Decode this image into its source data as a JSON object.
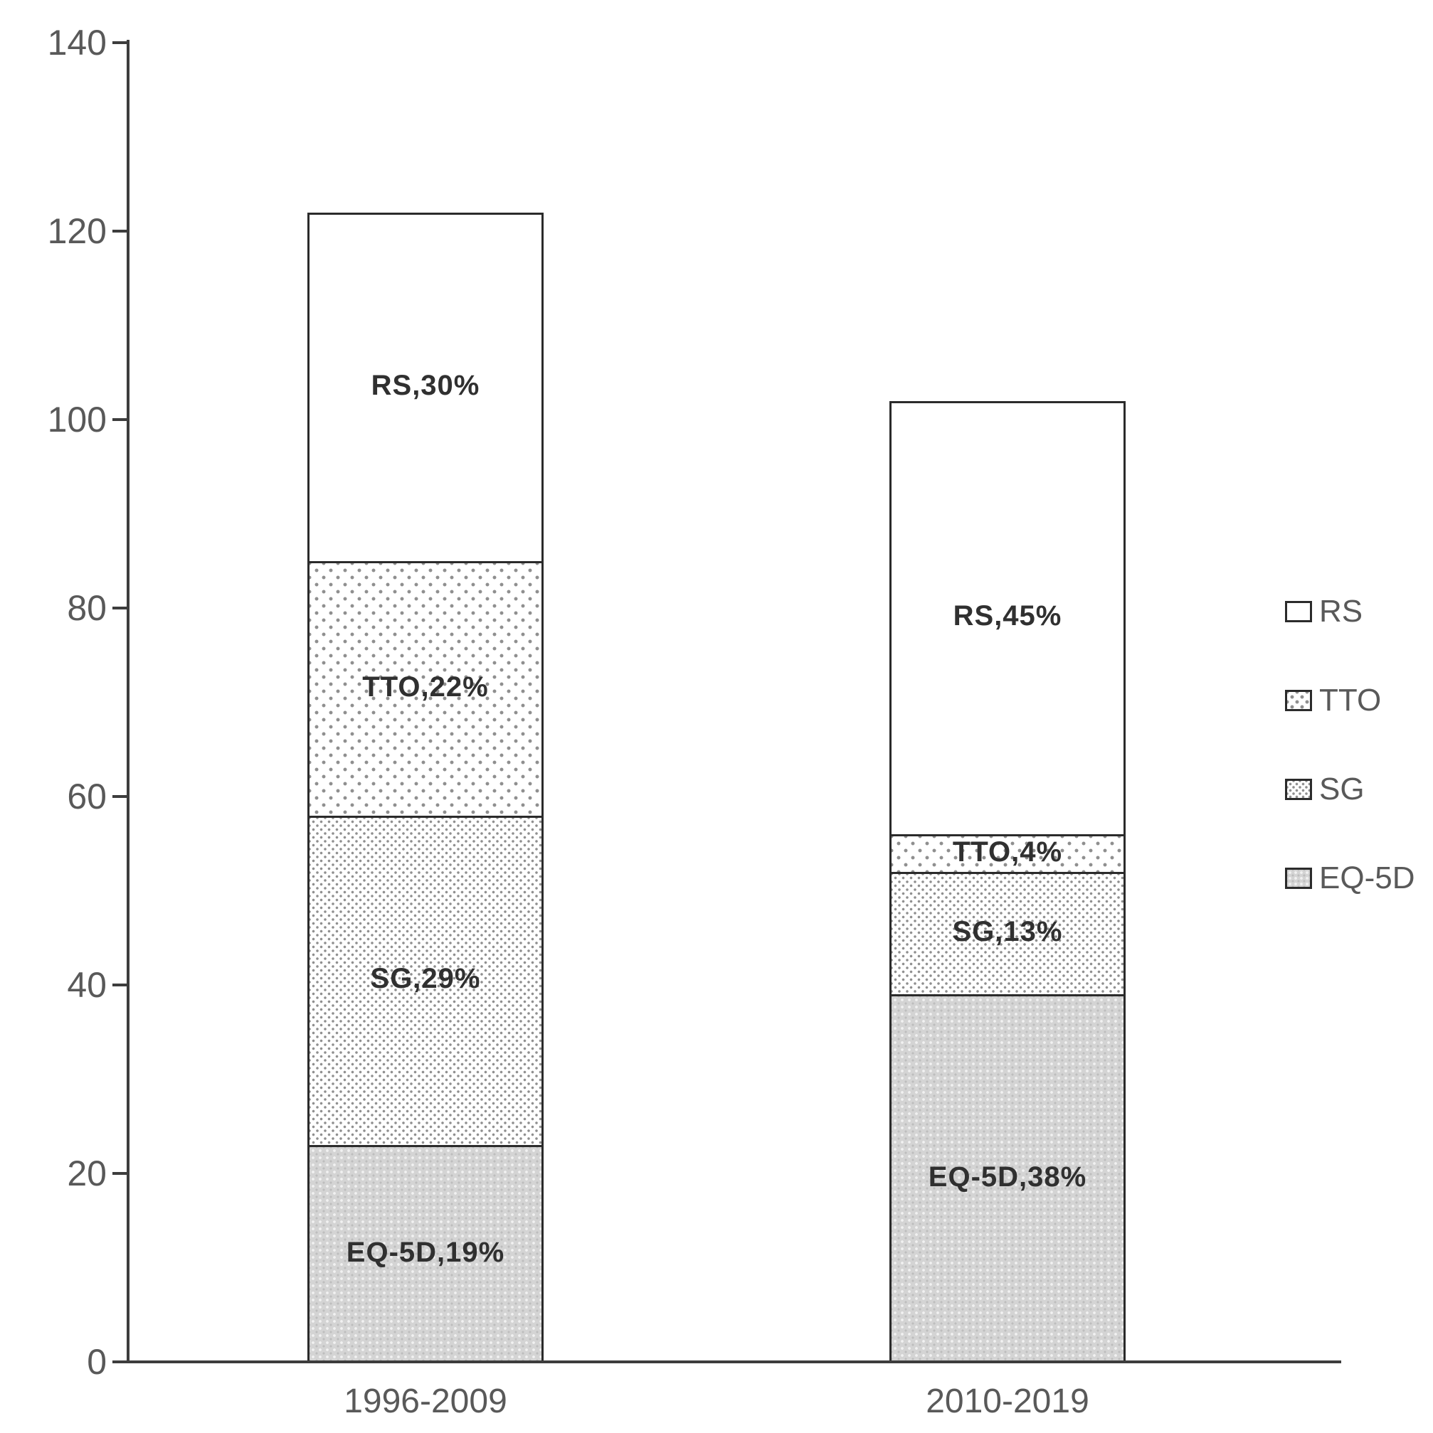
{
  "chart_data": {
    "type": "bar",
    "stacked": true,
    "title": "",
    "categories": [
      "1996-2009",
      "2010-2019"
    ],
    "series": [
      {
        "name": "EQ-5D",
        "pattern": "eq",
        "values": [
          23,
          39
        ],
        "segment_labels": [
          "EQ-5D,19%",
          "EQ-5D,38%"
        ]
      },
      {
        "name": "SG",
        "pattern": "sg",
        "values": [
          35,
          13
        ],
        "segment_labels": [
          "SG,29%",
          "SG,13%"
        ]
      },
      {
        "name": "TTO",
        "pattern": "tto",
        "values": [
          27,
          4
        ],
        "segment_labels": [
          "TTO,22%",
          "TTO,4%"
        ]
      },
      {
        "name": "RS",
        "pattern": "rs",
        "values": [
          37,
          46
        ],
        "segment_labels": [
          "RS,30%",
          "RS,45%"
        ]
      }
    ],
    "totals": [
      122,
      102
    ],
    "percent_by_category": {
      "1996-2009": {
        "EQ-5D": 19,
        "SG": 29,
        "TTO": 22,
        "RS": 30
      },
      "2010-2019": {
        "EQ-5D": 38,
        "SG": 13,
        "TTO": 4,
        "RS": 45
      }
    },
    "xlabel": "",
    "ylabel": "",
    "ylim": [
      0,
      140
    ],
    "yticks": [
      0,
      20,
      40,
      60,
      80,
      100,
      120,
      140
    ],
    "grid": false,
    "legend": {
      "position": "right",
      "items": [
        "RS",
        "TTO",
        "SG",
        "EQ-5D"
      ]
    }
  },
  "colors": {
    "background": "#ffffff",
    "bar_border": "#2b2b2b",
    "axis": "#3d3d3d",
    "tick_text": "#595959",
    "segment_label_text": "#303030",
    "legend_text": "#595959",
    "eq5d_fill": "#d4d4d4",
    "pattern_dot": "#8f8f8f"
  }
}
